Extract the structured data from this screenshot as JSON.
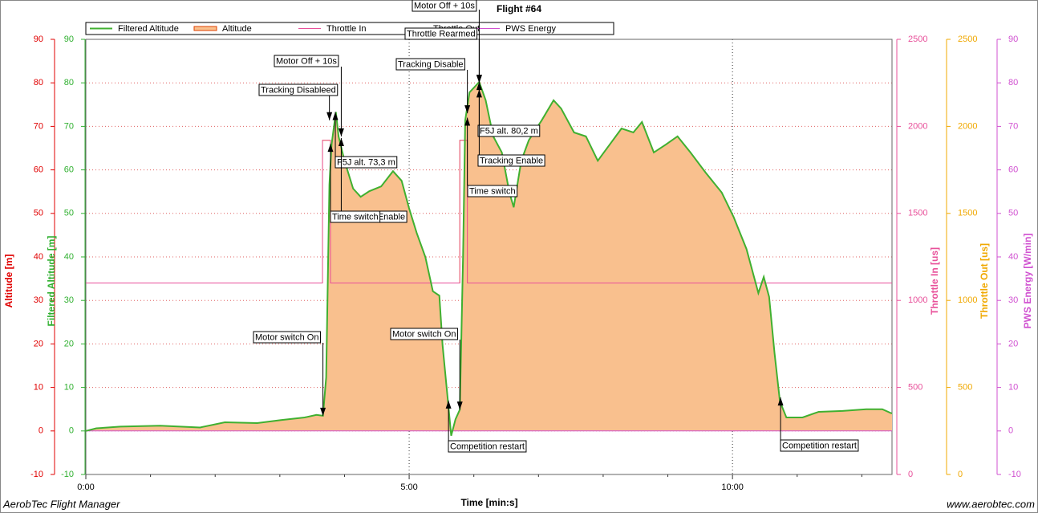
{
  "chart_data": {
    "type": "line",
    "title": "Flight #64",
    "x_label": "Time [min:s]",
    "xlim": [
      0,
      748
    ],
    "xticks": [
      {
        "value": 0,
        "label": "0:00"
      },
      {
        "value": 300,
        "label": "5:00"
      },
      {
        "value": 600,
        "label": "10:00"
      }
    ],
    "x_minor_ticks": [
      60,
      120,
      180,
      240,
      360,
      420,
      480,
      540,
      660,
      720
    ],
    "grid": true,
    "y_axes": [
      {
        "label": "Altitude [m]",
        "color": "#e00000",
        "ylim": [
          -10,
          90
        ],
        "yticks": [
          -10,
          0,
          10,
          20,
          30,
          40,
          50,
          60,
          70,
          80,
          90
        ]
      },
      {
        "label": "Filtered Altitude [m]",
        "color": "#30b030",
        "ylim": [
          -10,
          90
        ],
        "yticks": [
          -10,
          0,
          10,
          20,
          30,
          40,
          50,
          60,
          70,
          80,
          90
        ]
      },
      {
        "label": "Throttle In [us]",
        "color": "#e8509a",
        "ylim": [
          0,
          2500
        ],
        "yticks": [
          0,
          500,
          1000,
          1500,
          2000,
          2500
        ]
      },
      {
        "label": "Throttle Out [us]",
        "color": "#f0a800",
        "ylim": [
          0,
          2500
        ],
        "yticks": [
          0,
          500,
          1000,
          1500,
          2000,
          2500
        ]
      },
      {
        "label": "PWS Energy [W/min]",
        "color": "#d050d0",
        "ylim": [
          -10,
          90
        ],
        "yticks": [
          -10,
          0,
          10,
          20,
          30,
          40,
          50,
          60,
          70,
          80,
          90
        ]
      }
    ],
    "series": [
      {
        "name": "Filtered Altitude",
        "color": "#40b030",
        "axis": 1,
        "x": [
          0,
          9.7,
          32,
          69,
          106,
          129,
          159,
          181,
          203,
          214,
          220,
          223,
          226,
          228,
          232,
          234.5,
          240,
          248,
          255,
          263,
          274,
          285,
          293,
          300,
          307,
          315,
          322,
          328,
          331,
          336,
          339,
          343,
          347,
          350,
          352,
          356,
          365,
          371,
          378,
          386,
          393,
          397,
          404,
          411,
          423,
          434,
          441,
          453,
          464,
          475,
          486,
          497,
          508,
          516,
          527,
          538,
          549,
          561,
          575,
          590,
          601,
          613,
          624,
          629,
          634,
          639,
          644,
          650,
          665,
          680,
          702,
          724,
          739,
          748
        ],
        "values": [
          0,
          0.6,
          1,
          1.2,
          0.8,
          2,
          1.8,
          2.5,
          3.1,
          3.7,
          3.5,
          12.3,
          56.6,
          65.8,
          73.3,
          67.7,
          62.1,
          55.7,
          53.8,
          55.1,
          56.2,
          59.7,
          57.5,
          51.1,
          45.5,
          40,
          32.1,
          31.1,
          19.7,
          6.8,
          -1.1,
          2.7,
          4.9,
          40,
          71.4,
          77.8,
          80.2,
          76,
          67.7,
          64,
          54.8,
          51.4,
          62.1,
          66.8,
          71.4,
          76,
          74.1,
          68.6,
          67.7,
          62.1,
          65.8,
          69.5,
          68.6,
          71,
          64,
          65.8,
          67.7,
          64,
          59.4,
          54.8,
          49.2,
          41.8,
          31.7,
          35.4,
          30.8,
          17.9,
          6.8,
          3.1,
          3.1,
          4.4,
          4.6,
          5,
          5,
          4
        ]
      },
      {
        "name": "Altitude",
        "color": "#f9c08e",
        "axis": 0,
        "x": [
          0,
          9.7,
          32,
          69,
          106,
          129,
          159,
          181,
          203,
          214,
          220,
          223,
          226,
          228,
          232,
          234.5,
          240,
          248,
          255,
          263,
          274,
          285,
          293,
          300,
          307,
          315,
          322,
          328,
          331,
          336,
          339,
          343,
          347,
          350,
          352,
          356,
          365,
          371,
          378,
          386,
          393,
          397,
          404,
          411,
          423,
          434,
          441,
          453,
          464,
          475,
          486,
          497,
          508,
          516,
          527,
          538,
          549,
          561,
          575,
          590,
          601,
          613,
          624,
          629,
          634,
          639,
          644,
          650,
          665,
          680,
          702,
          724,
          739,
          748
        ],
        "values": [
          0,
          0.6,
          1,
          1.2,
          0.8,
          2,
          1.8,
          2.5,
          3.1,
          3.7,
          3.5,
          12.3,
          56.6,
          65.8,
          73.3,
          67.7,
          62.1,
          55.7,
          53.8,
          55.1,
          56.2,
          59.7,
          57.5,
          51.1,
          45.5,
          40,
          32.1,
          31.1,
          19.7,
          6.8,
          -1.1,
          2.7,
          4.9,
          40,
          71.4,
          77.8,
          80.2,
          76,
          67.7,
          64,
          54.8,
          51.4,
          62.1,
          66.8,
          71.4,
          76,
          74.1,
          68.6,
          67.7,
          62.1,
          65.8,
          69.5,
          68.6,
          71,
          64,
          65.8,
          67.7,
          64,
          59.4,
          54.8,
          49.2,
          41.8,
          31.7,
          35.4,
          30.8,
          17.9,
          6.8,
          3.1,
          3.1,
          4.4,
          4.6,
          5,
          5,
          4
        ]
      },
      {
        "name": "Throttle In",
        "color": "#e8509a",
        "axis": 2,
        "x": [
          0,
          219.6,
          219.6,
          227,
          227,
          347,
          347,
          354,
          354,
          748
        ],
        "values": [
          1100,
          1100,
          1920,
          1920,
          1100,
          1100,
          1920,
          1920,
          1100,
          1100
        ]
      },
      {
        "name": "Throttle Out",
        "color": "#f0a800",
        "axis": 3,
        "x": [
          0,
          219.6,
          219.6,
          227,
          227,
          347,
          347,
          354,
          354,
          748
        ],
        "values": [
          1100,
          1100,
          1920,
          1920,
          1100,
          1100,
          1920,
          1920,
          1100,
          1100
        ]
      },
      {
        "name": "PWS Energy",
        "color": "#d050d0",
        "axis": 4,
        "x": [
          0,
          748
        ],
        "values": [
          0,
          0
        ]
      }
    ],
    "annotations": [
      {
        "text": "Motor switch On",
        "x": 220,
        "y": 3.5
      },
      {
        "text": "Tracking Disableed",
        "x": 226,
        "y": 71.4
      },
      {
        "text": "Motor Off + 10s",
        "x": 237,
        "y": 67.7
      },
      {
        "text": "F5J alt. 73,3 m",
        "x": 231.5,
        "y": 73.3
      },
      {
        "text": "Tracking Enable",
        "x": 237,
        "y": 67.3
      },
      {
        "text": "Time switch",
        "x": 227,
        "y": 66
      },
      {
        "text": "Motor switch On",
        "x": 347,
        "y": 4.9
      },
      {
        "text": "Competition restart",
        "x": 336.5,
        "y": 7
      },
      {
        "text": "Tracking Disable",
        "x": 354,
        "y": 73
      },
      {
        "text": "Throttle Rearmed",
        "x": 365,
        "y": 80
      },
      {
        "text": "Motor Off + 10s",
        "x": 365,
        "y": 80
      },
      {
        "text": "F5J alt. 80,2 m",
        "x": 365,
        "y": 80.2
      },
      {
        "text": "Tracking Enable",
        "x": 365,
        "y": 78.5
      },
      {
        "text": "Time switch",
        "x": 354,
        "y": 72
      },
      {
        "text": "Competition restart",
        "x": 644.6,
        "y": 7.7
      }
    ],
    "footer_left": "AerobTec Flight Manager",
    "footer_right": "www.aerobtec.com"
  }
}
